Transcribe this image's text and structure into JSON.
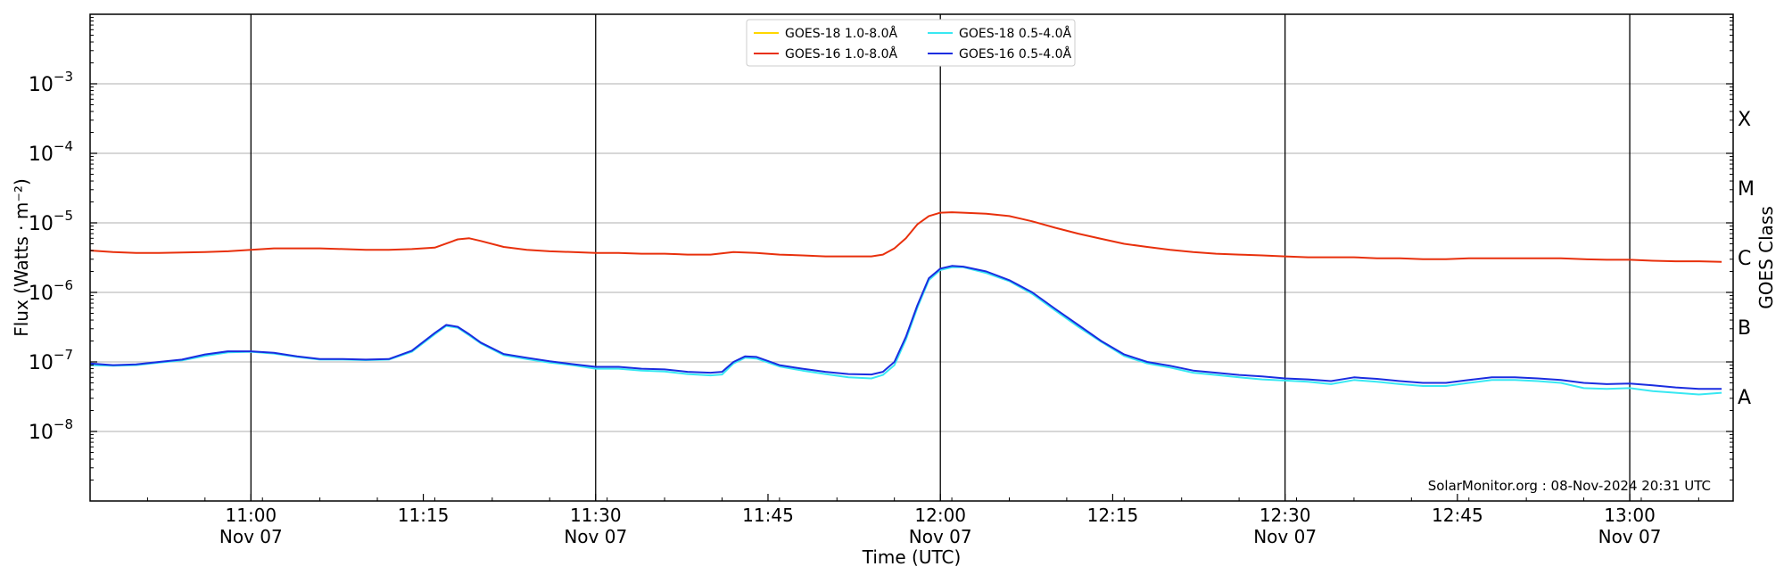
{
  "chart_data": {
    "type": "line",
    "y_scale": "log",
    "ylim": [
      1e-09,
      0.01
    ],
    "xlim": [
      "10:46",
      "13:09"
    ],
    "ylabel": "Flux (Watts · m⁻²)",
    "xlabel": "Time (UTC)",
    "y2label": "GOES Class",
    "y_ticks": [
      {
        "exp": -8,
        "label": "−8"
      },
      {
        "exp": -7,
        "label": "−7"
      },
      {
        "exp": -6,
        "label": "−6"
      },
      {
        "exp": -5,
        "label": "−5"
      },
      {
        "exp": -4,
        "label": "−4"
      },
      {
        "exp": -3,
        "label": "−3"
      }
    ],
    "x_ticks": [
      {
        "time": "11:00",
        "label": "11:00",
        "date": "Nov 07"
      },
      {
        "time": "11:15",
        "label": "11:15",
        "date": ""
      },
      {
        "time": "11:30",
        "label": "11:30",
        "date": "Nov 07"
      },
      {
        "time": "11:45",
        "label": "11:45",
        "date": ""
      },
      {
        "time": "12:00",
        "label": "12:00",
        "date": "Nov 07"
      },
      {
        "time": "12:15",
        "label": "12:15",
        "date": ""
      },
      {
        "time": "12:30",
        "label": "12:30",
        "date": "Nov 07"
      },
      {
        "time": "12:45",
        "label": "12:45",
        "date": ""
      },
      {
        "time": "13:00",
        "label": "13:00",
        "date": "Nov 07"
      }
    ],
    "vertical_lines": [
      "11:00",
      "11:30",
      "12:00",
      "12:30",
      "13:00"
    ],
    "goes_classes": [
      {
        "label": "X",
        "flux": 0.000316
      },
      {
        "label": "M",
        "flux": 3.16e-05
      },
      {
        "label": "C",
        "flux": 3.16e-06
      },
      {
        "label": "B",
        "flux": 3.16e-07
      },
      {
        "label": "A",
        "flux": 3.16e-08
      }
    ],
    "grid": "horizontal",
    "legend_position": "top-center",
    "annotation": "SolarMonitor.org : 08-Nov-2024 20:31 UTC",
    "series": [
      {
        "name": "GOES-18 1.0-8.0Å",
        "color": "#ffd700",
        "x": [],
        "y": []
      },
      {
        "name": "GOES-16 1.0-8.0Å",
        "color": "#e8300c",
        "x": [
          "10:46",
          "10:48",
          "10:50",
          "10:52",
          "10:54",
          "10:56",
          "10:58",
          "11:00",
          "11:02",
          "11:04",
          "11:06",
          "11:08",
          "11:10",
          "11:12",
          "11:14",
          "11:16",
          "11:18",
          "11:19",
          "11:20",
          "11:22",
          "11:24",
          "11:26",
          "11:28",
          "11:30",
          "11:32",
          "11:34",
          "11:36",
          "11:38",
          "11:40",
          "11:42",
          "11:44",
          "11:46",
          "11:48",
          "11:50",
          "11:52",
          "11:54",
          "11:55",
          "11:56",
          "11:57",
          "11:58",
          "11:59",
          "12:00",
          "12:01",
          "12:02",
          "12:04",
          "12:06",
          "12:08",
          "12:10",
          "12:12",
          "12:14",
          "12:16",
          "12:18",
          "12:20",
          "12:22",
          "12:24",
          "12:26",
          "12:28",
          "12:30",
          "12:32",
          "12:34",
          "12:36",
          "12:38",
          "12:40",
          "12:42",
          "12:44",
          "12:46",
          "12:48",
          "12:50",
          "12:52",
          "12:54",
          "12:56",
          "12:58",
          "13:00",
          "13:02",
          "13:04",
          "13:06",
          "13:08"
        ],
        "y": [
          4e-06,
          3.8e-06,
          3.7e-06,
          3.7e-06,
          3.75e-06,
          3.8e-06,
          3.9e-06,
          4.1e-06,
          4.3e-06,
          4.3e-06,
          4.3e-06,
          4.2e-06,
          4.1e-06,
          4.1e-06,
          4.2e-06,
          4.4e-06,
          5.8e-06,
          6e-06,
          5.5e-06,
          4.5e-06,
          4.1e-06,
          3.9e-06,
          3.8e-06,
          3.7e-06,
          3.7e-06,
          3.6e-06,
          3.6e-06,
          3.5e-06,
          3.5e-06,
          3.8e-06,
          3.7e-06,
          3.5e-06,
          3.4e-06,
          3.3e-06,
          3.3e-06,
          3.3e-06,
          3.5e-06,
          4.3e-06,
          6e-06,
          9.5e-06,
          1.25e-05,
          1.4e-05,
          1.42e-05,
          1.4e-05,
          1.35e-05,
          1.25e-05,
          1.05e-05,
          8.5e-06,
          7e-06,
          5.9e-06,
          5e-06,
          4.5e-06,
          4.1e-06,
          3.8e-06,
          3.6e-06,
          3.5e-06,
          3.4e-06,
          3.3e-06,
          3.2e-06,
          3.2e-06,
          3.2e-06,
          3.1e-06,
          3.1e-06,
          3e-06,
          3e-06,
          3.1e-06,
          3.1e-06,
          3.1e-06,
          3.1e-06,
          3.1e-06,
          3e-06,
          2.95e-06,
          2.95e-06,
          2.85e-06,
          2.8e-06,
          2.8e-06,
          2.75e-06
        ]
      },
      {
        "name": "GOES-18 0.5-4.0Å",
        "color": "#38e8f2",
        "x": [
          "10:46",
          "10:48",
          "10:50",
          "10:52",
          "10:54",
          "10:56",
          "10:58",
          "11:00",
          "11:02",
          "11:04",
          "11:06",
          "11:08",
          "11:10",
          "11:12",
          "11:14",
          "11:16",
          "11:17",
          "11:18",
          "11:19",
          "11:20",
          "11:22",
          "11:24",
          "11:26",
          "11:28",
          "11:30",
          "11:32",
          "11:34",
          "11:36",
          "11:38",
          "11:40",
          "11:41",
          "11:42",
          "11:43",
          "11:44",
          "11:46",
          "11:48",
          "11:50",
          "11:52",
          "11:54",
          "11:55",
          "11:56",
          "11:57",
          "11:58",
          "11:59",
          "12:00",
          "12:01",
          "12:02",
          "12:04",
          "12:06",
          "12:08",
          "12:10",
          "12:12",
          "12:14",
          "12:16",
          "12:18",
          "12:20",
          "12:22",
          "12:24",
          "12:26",
          "12:28",
          "12:30",
          "12:32",
          "12:34",
          "12:36",
          "12:38",
          "12:40",
          "12:42",
          "12:44",
          "12:46",
          "12:48",
          "12:50",
          "12:52",
          "12:54",
          "12:56",
          "12:58",
          "13:00",
          "13:02",
          "13:04",
          "13:06",
          "13:08"
        ],
        "y": [
          9e-08,
          8.8e-08,
          9e-08,
          9.8e-08,
          1.05e-07,
          1.22e-07,
          1.37e-07,
          1.4e-07,
          1.32e-07,
          1.18e-07,
          1.08e-07,
          1.08e-07,
          1.06e-07,
          1.08e-07,
          1.4e-07,
          2.5e-07,
          3.3e-07,
          3.1e-07,
          2.4e-07,
          1.85e-07,
          1.25e-07,
          1.1e-07,
          9.8e-08,
          9e-08,
          8e-08,
          8e-08,
          7.5e-08,
          7.3e-08,
          6.7e-08,
          6.4e-08,
          6.6e-08,
          9.5e-08,
          1.15e-07,
          1.12e-07,
          8.6e-08,
          7.5e-08,
          6.7e-08,
          6e-08,
          5.8e-08,
          6.5e-08,
          9e-08,
          2.1e-07,
          6e-07,
          1.5e-06,
          2.1e-06,
          2.3e-06,
          2.3e-06,
          1.9e-06,
          1.45e-06,
          9.5e-07,
          5.5e-07,
          3.2e-07,
          1.95e-07,
          1.22e-07,
          9.5e-08,
          8.3e-08,
          7e-08,
          6.5e-08,
          6e-08,
          5.6e-08,
          5.4e-08,
          5.2e-08,
          4.8e-08,
          5.5e-08,
          5.2e-08,
          4.8e-08,
          4.5e-08,
          4.5e-08,
          5e-08,
          5.5e-08,
          5.5e-08,
          5.3e-08,
          5e-08,
          4.2e-08,
          4.1e-08,
          4.2e-08,
          3.8e-08,
          3.6e-08,
          3.4e-08,
          3.6e-08
        ]
      },
      {
        "name": "GOES-16 0.5-4.0Å",
        "color": "#1a2de0",
        "x": [
          "10:46",
          "10:48",
          "10:50",
          "10:52",
          "10:54",
          "10:56",
          "10:58",
          "11:00",
          "11:02",
          "11:04",
          "11:06",
          "11:08",
          "11:10",
          "11:12",
          "11:14",
          "11:16",
          "11:17",
          "11:18",
          "11:19",
          "11:20",
          "11:22",
          "11:24",
          "11:26",
          "11:28",
          "11:30",
          "11:32",
          "11:34",
          "11:36",
          "11:38",
          "11:40",
          "11:41",
          "11:42",
          "11:43",
          "11:44",
          "11:46",
          "11:48",
          "11:50",
          "11:52",
          "11:54",
          "11:55",
          "11:56",
          "11:57",
          "11:58",
          "11:59",
          "12:00",
          "12:01",
          "12:02",
          "12:04",
          "12:06",
          "12:08",
          "12:10",
          "12:12",
          "12:14",
          "12:16",
          "12:18",
          "12:20",
          "12:22",
          "12:24",
          "12:26",
          "12:28",
          "12:30",
          "12:32",
          "12:34",
          "12:36",
          "12:38",
          "12:40",
          "12:42",
          "12:44",
          "12:46",
          "12:48",
          "12:50",
          "12:52",
          "12:54",
          "12:56",
          "12:58",
          "13:00",
          "13:02",
          "13:04",
          "13:06",
          "13:08"
        ],
        "y": [
          9.5e-08,
          9e-08,
          9.2e-08,
          1e-07,
          1.08e-07,
          1.28e-07,
          1.42e-07,
          1.42e-07,
          1.35e-07,
          1.2e-07,
          1.1e-07,
          1.1e-07,
          1.08e-07,
          1.1e-07,
          1.45e-07,
          2.6e-07,
          3.4e-07,
          3.2e-07,
          2.5e-07,
          1.9e-07,
          1.3e-07,
          1.15e-07,
          1.02e-07,
          9.3e-08,
          8.5e-08,
          8.5e-08,
          8e-08,
          7.8e-08,
          7.2e-08,
          7e-08,
          7.2e-08,
          1e-07,
          1.2e-07,
          1.18e-07,
          9e-08,
          8e-08,
          7.2e-08,
          6.7e-08,
          6.6e-08,
          7.2e-08,
          1e-07,
          2.3e-07,
          6.5e-07,
          1.6e-06,
          2.2e-06,
          2.4e-06,
          2.35e-06,
          2e-06,
          1.5e-06,
          1e-06,
          5.8e-07,
          3.4e-07,
          2e-07,
          1.28e-07,
          1e-07,
          8.8e-08,
          7.5e-08,
          7e-08,
          6.5e-08,
          6.2e-08,
          5.8e-08,
          5.6e-08,
          5.3e-08,
          6e-08,
          5.7e-08,
          5.3e-08,
          5e-08,
          5e-08,
          5.5e-08,
          6e-08,
          6e-08,
          5.8e-08,
          5.5e-08,
          5e-08,
          4.8e-08,
          4.9e-08,
          4.6e-08,
          4.3e-08,
          4.1e-08,
          4.1e-08
        ]
      }
    ]
  }
}
